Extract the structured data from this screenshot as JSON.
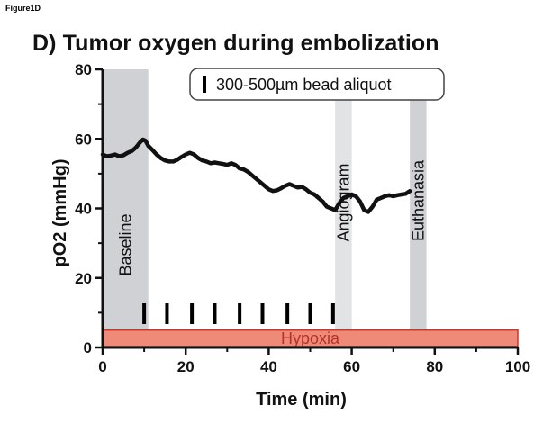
{
  "figure_label": "Figure1D",
  "chart_data": {
    "type": "line",
    "title": "D) Tumor oxygen during embolization",
    "xlabel": "Time (min)",
    "ylabel": "pO2 (mmHg)",
    "xlim": [
      0,
      100
    ],
    "ylim": [
      0,
      80
    ],
    "xticks": [
      0,
      20,
      40,
      60,
      80,
      100
    ],
    "yticks": [
      0,
      20,
      40,
      60,
      80
    ],
    "grid": false,
    "series": [
      {
        "values_x": [
          0,
          1,
          2,
          3,
          4,
          5,
          6,
          7,
          8,
          9,
          9.7,
          10.3,
          11,
          12,
          13,
          14,
          15,
          16,
          17,
          18,
          19,
          20,
          21,
          22,
          23,
          24,
          25,
          26,
          27,
          28,
          29,
          30,
          31,
          32,
          33,
          34,
          35,
          36,
          37,
          38,
          39,
          40,
          41,
          42,
          43,
          44,
          45,
          46,
          47,
          48,
          49,
          50,
          51,
          52,
          53,
          54,
          55,
          56,
          57,
          58,
          59,
          60,
          61,
          62,
          63,
          64,
          65,
          66,
          67,
          68,
          69,
          70,
          71,
          72,
          73,
          74
        ],
        "values_y": [
          55.5,
          55,
          55.2,
          55.5,
          55,
          55.3,
          56,
          56.5,
          57.5,
          59,
          59.8,
          59.5,
          58,
          56.8,
          55.5,
          54.5,
          53.8,
          53.5,
          53.5,
          54,
          54.8,
          55.5,
          56,
          55.5,
          54.5,
          53.8,
          53.5,
          53,
          53.2,
          53,
          52.8,
          52.5,
          53,
          52.5,
          51.5,
          51.2,
          50.5,
          49.5,
          48.5,
          47.5,
          46.5,
          45.5,
          45,
          45.2,
          45.8,
          46.5,
          47,
          46.5,
          46,
          46.2,
          45.5,
          44.5,
          44,
          43,
          42,
          40.5,
          40,
          39.5,
          41.5,
          43,
          43.5,
          44,
          43.5,
          42,
          39.5,
          39,
          40.5,
          42.5,
          43,
          43.5,
          43.8,
          43.5,
          43.8,
          44,
          44.2,
          45
        ]
      }
    ],
    "shaded_regions": [
      {
        "label": "Baseline",
        "x": [
          0,
          11
        ],
        "color": "#cfd1d4"
      },
      {
        "label": "Angiogram",
        "x": [
          56,
          60
        ],
        "color": "#e2e3e5"
      },
      {
        "label": "Euthanasia",
        "x": [
          74,
          78
        ],
        "color": "#cfd1d4"
      }
    ],
    "bead_aliquot_times": [
      10,
      15.5,
      21.5,
      27,
      33,
      38.5,
      44.5,
      50,
      55.5
    ],
    "legend": {
      "text": "300-500µm bead aliquot",
      "position": "top-right"
    },
    "hypoxia_bar": {
      "label": "Hypoxia",
      "y": [
        0,
        5
      ],
      "x": [
        0,
        100
      ],
      "fill": "#f08a78",
      "stroke": "#c5392d"
    },
    "line_color": "#111111"
  }
}
